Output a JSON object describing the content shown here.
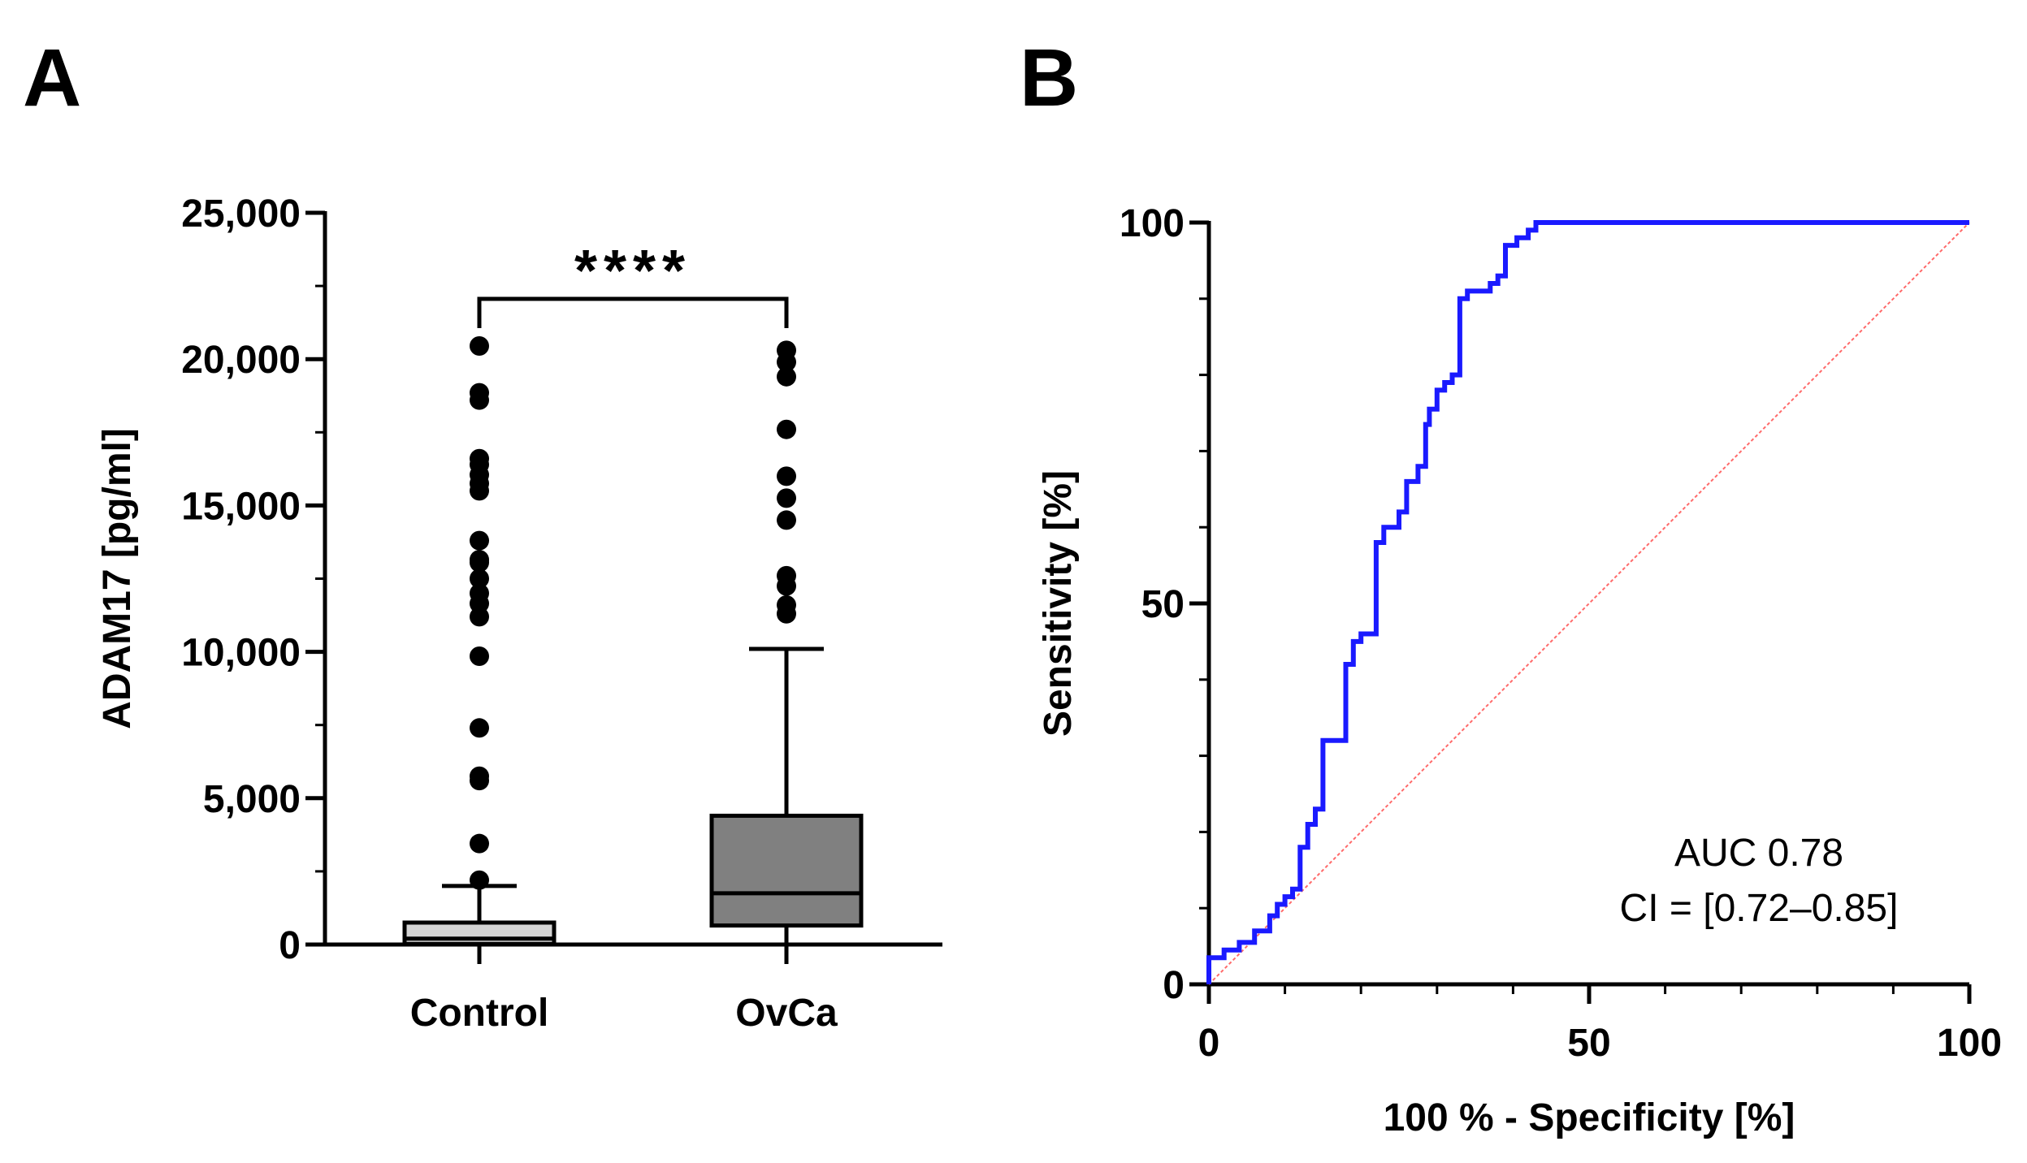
{
  "panels": {
    "a": {
      "letter": "A"
    },
    "b": {
      "letter": "B"
    }
  },
  "chart_data": [
    {
      "type": "box",
      "panel": "A",
      "ylabel": "ADAM17 [pg/ml]",
      "ylim": [
        0,
        25000
      ],
      "yticks": [
        0,
        5000,
        10000,
        15000,
        20000,
        25000
      ],
      "ytick_labels": [
        "0",
        "5,000",
        "10,000",
        "15,000",
        "20,000",
        "25,000"
      ],
      "categories": [
        "Control",
        "OvCa"
      ],
      "significance": "****",
      "groups": [
        {
          "name": "Control",
          "fill": "#d3d3d3",
          "whisker_low": 0,
          "q1": 20,
          "median": 200,
          "q3": 750,
          "whisker_high": 2000,
          "outliers": [
            2200,
            3450,
            5600,
            5750,
            7400,
            9850,
            11200,
            11650,
            12000,
            12500,
            13050,
            13150,
            13800,
            15500,
            15750,
            16050,
            16400,
            16600,
            18600,
            18850,
            20450
          ]
        },
        {
          "name": "OvCa",
          "fill": "#808080",
          "whisker_low": 0,
          "q1": 650,
          "median": 1750,
          "q3": 4400,
          "whisker_high": 10100,
          "outliers": [
            11300,
            11600,
            12250,
            12600,
            14500,
            15250,
            16000,
            17600,
            19400,
            19900,
            20300
          ]
        }
      ]
    },
    {
      "type": "line",
      "panel": "B",
      "xlabel": "100 % - Specificity [%]",
      "ylabel": "Sensitivity [%]",
      "xlim": [
        0,
        100
      ],
      "ylim": [
        0,
        100
      ],
      "xticks": [
        0,
        50,
        100
      ],
      "yticks": [
        0,
        50,
        100
      ],
      "annotation": [
        "AUC 0.78",
        "CI = [0.72–0.85]"
      ],
      "series": [
        {
          "color": "#1a1aff",
          "points": [
            [
              0,
              0
            ],
            [
              0,
              3.5
            ],
            [
              2,
              3.5
            ],
            [
              2,
              4.5
            ],
            [
              4,
              4.5
            ],
            [
              4,
              5.5
            ],
            [
              6,
              5.5
            ],
            [
              6,
              7
            ],
            [
              8,
              7
            ],
            [
              8,
              9
            ],
            [
              9,
              9
            ],
            [
              9,
              10.5
            ],
            [
              10,
              10.5
            ],
            [
              10,
              11.5
            ],
            [
              11,
              11.5
            ],
            [
              11,
              12.5
            ],
            [
              12,
              12.5
            ],
            [
              12,
              18
            ],
            [
              13,
              18
            ],
            [
              13,
              21
            ],
            [
              14,
              21
            ],
            [
              14,
              23
            ],
            [
              15,
              23
            ],
            [
              15,
              32
            ],
            [
              18,
              32
            ],
            [
              18,
              42
            ],
            [
              19,
              42
            ],
            [
              19,
              45
            ],
            [
              20,
              45
            ],
            [
              20,
              46
            ],
            [
              22,
              46
            ],
            [
              22,
              58
            ],
            [
              23,
              58
            ],
            [
              23,
              60
            ],
            [
              25,
              60
            ],
            [
              25,
              62
            ],
            [
              26,
              62
            ],
            [
              26,
              66
            ],
            [
              27.5,
              66
            ],
            [
              27.5,
              68
            ],
            [
              28.5,
              68
            ],
            [
              28.5,
              73.5
            ],
            [
              29,
              73.5
            ],
            [
              29,
              75.5
            ],
            [
              30,
              75.5
            ],
            [
              30,
              78
            ],
            [
              31,
              78
            ],
            [
              31,
              79
            ],
            [
              32,
              79
            ],
            [
              32,
              80
            ],
            [
              33,
              80
            ],
            [
              33,
              90
            ],
            [
              34,
              90
            ],
            [
              34,
              91
            ],
            [
              37,
              91
            ],
            [
              37,
              92
            ],
            [
              38,
              92
            ],
            [
              38,
              93
            ],
            [
              39,
              93
            ],
            [
              39,
              97
            ],
            [
              40.5,
              97
            ],
            [
              40.5,
              98
            ],
            [
              42,
              98
            ],
            [
              42,
              99
            ],
            [
              43,
              99
            ],
            [
              43,
              100
            ],
            [
              100,
              100
            ]
          ]
        },
        {
          "color": "#ff6a6a",
          "dashed": true,
          "points": [
            [
              0,
              0
            ],
            [
              100,
              100
            ]
          ]
        }
      ]
    }
  ]
}
